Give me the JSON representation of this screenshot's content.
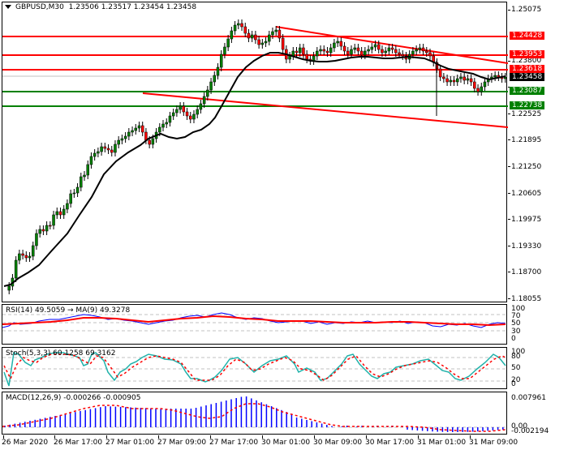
{
  "header": {
    "symbol_timeframe": "GBPUSD,M30",
    "ohlc": "1.23506 1.23517 1.23454 1.23458",
    "icon": "dropdown-triangle-icon"
  },
  "main_chart": {
    "price_axis_ticks": [
      "1.25075",
      "1.23800",
      "1.23170",
      "1.22525",
      "1.21895",
      "1.21250",
      "1.20605",
      "1.19975",
      "1.19330",
      "1.18700",
      "1.18055"
    ],
    "levels": [
      {
        "name": "resistance-3",
        "price": "1.24428",
        "color": "#ff0000"
      },
      {
        "name": "resistance-2",
        "price": "1.23953",
        "color": "#ff0000"
      },
      {
        "name": "resistance-1",
        "price": "1.23618",
        "color": "#ff0000"
      },
      {
        "name": "current-price",
        "price": "1.23458",
        "color": "#000000"
      },
      {
        "name": "support-1",
        "price": "1.23087",
        "color": "#008000"
      },
      {
        "name": "support-2",
        "price": "1.22738",
        "color": "#008000"
      }
    ]
  },
  "rsi": {
    "title": "RSI(14) 49.5059 → MA(9) 49.3278",
    "axis_ticks": [
      "100",
      "70",
      "50",
      "30",
      "0"
    ]
  },
  "stoch": {
    "title": "Stoch(5,3,3) 60.1258 69.3162",
    "axis_ticks": [
      "100",
      "80",
      "50",
      "20",
      "0"
    ]
  },
  "macd": {
    "title": "MACD(12,26,9) -0.000266 -0.000905",
    "axis_ticks": [
      "0.007961",
      "0.00",
      "-0.002194"
    ]
  },
  "time_axis": {
    "labels": [
      "26 Mar 2020",
      "26 Mar 17:00",
      "27 Mar 01:00",
      "27 Mar 09:00",
      "27 Mar 17:00",
      "30 Mar 01:00",
      "30 Mar 09:00",
      "30 Mar 17:00",
      "31 Mar 01:00",
      "31 Mar 09:00"
    ]
  },
  "colors": {
    "bull_candle": "#008000",
    "bear_candle": "#ff0000",
    "ma_line": "#000000",
    "resistance": "#ff0000",
    "support": "#008000",
    "rsi_line": "#0000ff",
    "rsi_ma": "#ff0000",
    "stoch_main": "#20b2aa",
    "stoch_signal": "#ff0000",
    "macd_hist": "#0000ff",
    "macd_signal": "#ff0000",
    "current_price_tag": "#000000"
  }
}
